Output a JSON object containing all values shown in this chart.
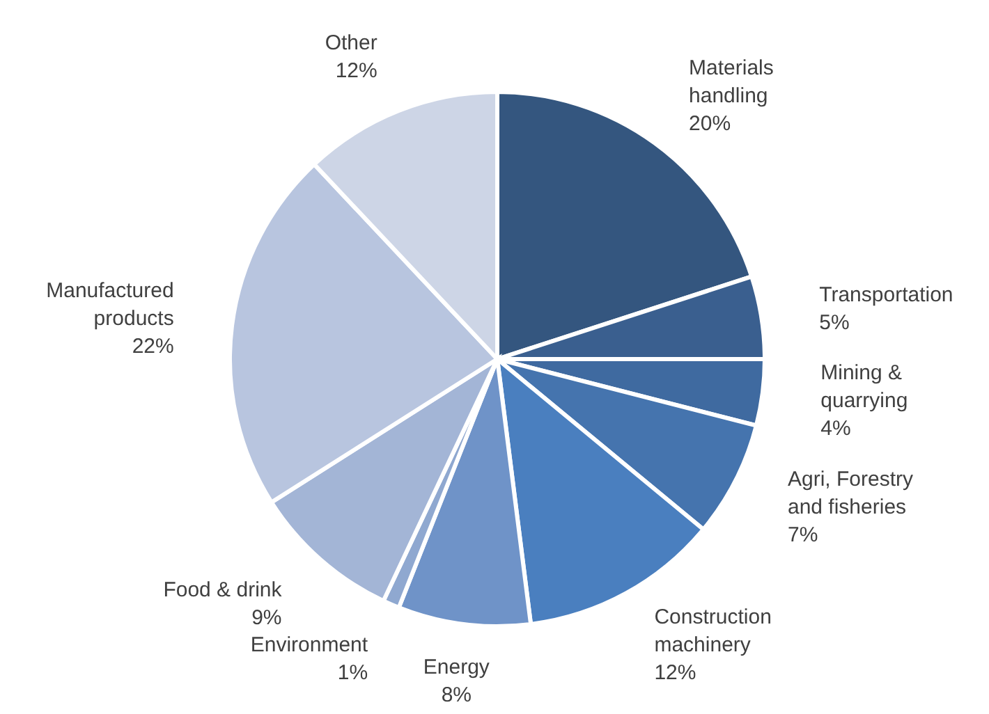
{
  "chart_data": {
    "type": "pie",
    "categories": [
      "Materials handling",
      "Transportation",
      "Mining & quarrying",
      "Agri, Forestry and fisheries",
      "Construction machinery",
      "Energy",
      "Environment",
      "Food & drink",
      "Manufactured products",
      "Other"
    ],
    "values": [
      20,
      5,
      4,
      7,
      12,
      8,
      1,
      9,
      22,
      12
    ],
    "value_labels": [
      "20%",
      "5%",
      "4%",
      "7%",
      "12%",
      "8%",
      "1%",
      "9%",
      "22%",
      "12%"
    ],
    "colors": [
      "#34567f",
      "#3a5f8f",
      "#3f6aa0",
      "#4574ae",
      "#4a7fbf",
      "#6f93c8",
      "#8fa8d0",
      "#a3b5d6",
      "#b8c5df",
      "#cdd5e6"
    ]
  }
}
